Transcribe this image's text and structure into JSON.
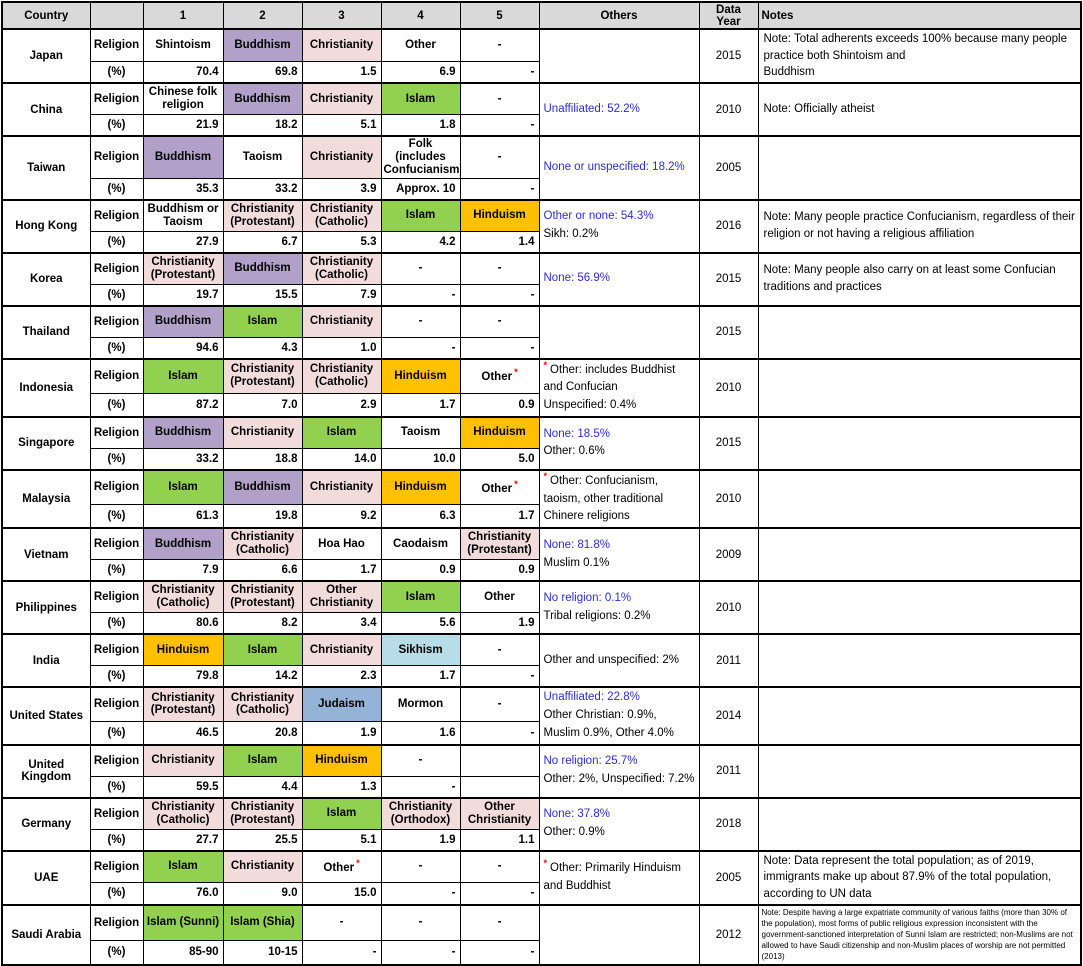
{
  "table": {
    "asterisk_char": "*",
    "headers": [
      "Country",
      "",
      "1",
      "2",
      "3",
      "4",
      "5",
      "Others",
      "Data Year",
      "Notes"
    ],
    "row_labels": {
      "religion": "Religion",
      "percent": "(%)"
    },
    "colors": {
      "purple": "#B1A0C7",
      "pink": "#F2DCDB",
      "green": "#92D050",
      "gold": "#FFC000",
      "blue": "#95B3D7",
      "lightblue": "#B7DEE8",
      "header_gray": "#D9D9D9",
      "blue_text": "#2E2EC8",
      "asterisk_red": "#FF0000",
      "none": ""
    },
    "countries": [
      {
        "name": "Japan",
        "religions": [
          {
            "text": "Shintoism",
            "color": "none"
          },
          {
            "text": "Buddhism",
            "color": "purple"
          },
          {
            "text": "Christianity",
            "color": "pink"
          },
          {
            "text": "Other",
            "color": "none"
          },
          {
            "text": "-",
            "color": "none"
          }
        ],
        "pcts": [
          "70.4",
          "69.8",
          "1.5",
          "6.9",
          "-"
        ],
        "others": [],
        "year": "2015",
        "notes": "Note: Total adherents exceeds 100% because many people practice both Shintoism and\nBuddhism",
        "notes_small": false
      },
      {
        "name": "China",
        "religions": [
          {
            "text": "Chinese folk religion",
            "color": "none"
          },
          {
            "text": "Buddhism",
            "color": "purple"
          },
          {
            "text": "Christianity",
            "color": "pink"
          },
          {
            "text": "Islam",
            "color": "green"
          },
          {
            "text": "-",
            "color": "none"
          }
        ],
        "pcts": [
          "21.9",
          "18.2",
          "5.1",
          "1.8",
          "-"
        ],
        "others": [
          {
            "text": "Unaffiliated: 52.2%",
            "style": "blue"
          }
        ],
        "year": "2010",
        "notes": "Note: Officially atheist",
        "notes_small": false
      },
      {
        "name": "Taiwan",
        "religions": [
          {
            "text": "Buddhism",
            "color": "purple"
          },
          {
            "text": "Taoism",
            "color": "none"
          },
          {
            "text": "Christianity",
            "color": "pink"
          },
          {
            "text": "Folk (includes Confucianism)",
            "color": "none"
          },
          {
            "text": "-",
            "color": "none"
          }
        ],
        "pcts": [
          "35.3",
          "33.2",
          "3.9",
          "Approx. 10",
          "-"
        ],
        "others": [
          {
            "text": "None or unspecified: 18.2%",
            "style": "blue"
          }
        ],
        "year": "2005",
        "notes": "",
        "notes_small": false
      },
      {
        "name": "Hong Kong",
        "religions": [
          {
            "text": "Buddhism or Taoism",
            "color": "none"
          },
          {
            "text": "Christianity (Protestant)",
            "color": "pink"
          },
          {
            "text": "Christianity (Catholic)",
            "color": "pink"
          },
          {
            "text": "Islam",
            "color": "green"
          },
          {
            "text": "Hinduism",
            "color": "gold"
          }
        ],
        "pcts": [
          "27.9",
          "6.7",
          "5.3",
          "4.2",
          "1.4"
        ],
        "others": [
          {
            "text": "Other or none: 54.3%",
            "style": "blue"
          },
          {
            "text": "Sikh: 0.2%",
            "style": "black"
          }
        ],
        "year": "2016",
        "notes": "Note: Many people practice Confucianism, regardless of their religion or not having a religious affiliation",
        "notes_small": false
      },
      {
        "name": "Korea",
        "religions": [
          {
            "text": "Christianity (Protestant)",
            "color": "pink"
          },
          {
            "text": "Buddhism",
            "color": "purple"
          },
          {
            "text": "Christianity (Catholic)",
            "color": "pink"
          },
          {
            "text": "-",
            "color": "none"
          },
          {
            "text": "-",
            "color": "none"
          }
        ],
        "pcts": [
          "19.7",
          "15.5",
          "7.9",
          "-",
          "-"
        ],
        "others": [
          {
            "text": "None: 56.9%",
            "style": "blue"
          }
        ],
        "year": "2015",
        "notes": "Note: Many people also carry on at least some Confucian traditions and practices",
        "notes_small": false
      },
      {
        "name": "Thailand",
        "religions": [
          {
            "text": "Buddhism",
            "color": "purple"
          },
          {
            "text": "Islam",
            "color": "green"
          },
          {
            "text": "Christianity",
            "color": "pink"
          },
          {
            "text": "-",
            "color": "none"
          },
          {
            "text": "-",
            "color": "none"
          }
        ],
        "pcts": [
          "94.6",
          "4.3",
          "1.0",
          "-",
          "-"
        ],
        "others": [],
        "year": "2015",
        "notes": "",
        "notes_small": false
      },
      {
        "name": "Indonesia",
        "religions": [
          {
            "text": "Islam",
            "color": "green"
          },
          {
            "text": "Christianity (Protestant)",
            "color": "pink"
          },
          {
            "text": "Christianity (Catholic)",
            "color": "pink"
          },
          {
            "text": "Hinduism",
            "color": "gold"
          },
          {
            "text": "Other",
            "color": "none",
            "asterisk": true
          }
        ],
        "pcts": [
          "87.2",
          "7.0",
          "2.9",
          "1.7",
          "0.9"
        ],
        "others": [
          {
            "text": "Other: includes Buddhist and Confucian",
            "style": "asterisk"
          },
          {
            "text": "Unspecified: 0.4%",
            "style": "black"
          }
        ],
        "year": "2010",
        "notes": "",
        "notes_small": false
      },
      {
        "name": "Singapore",
        "religions": [
          {
            "text": "Buddhism",
            "color": "purple"
          },
          {
            "text": "Christianity",
            "color": "pink"
          },
          {
            "text": "Islam",
            "color": "green"
          },
          {
            "text": "Taoism",
            "color": "none"
          },
          {
            "text": "Hinduism",
            "color": "gold"
          }
        ],
        "pcts": [
          "33.2",
          "18.8",
          "14.0",
          "10.0",
          "5.0"
        ],
        "others": [
          {
            "text": "None: 18.5%",
            "style": "blue"
          },
          {
            "text": "Other: 0.6%",
            "style": "black"
          }
        ],
        "year": "2015",
        "notes": "",
        "notes_small": false
      },
      {
        "name": "Malaysia",
        "religions": [
          {
            "text": "Islam",
            "color": "green"
          },
          {
            "text": "Buddhism",
            "color": "purple"
          },
          {
            "text": "Christianity",
            "color": "pink"
          },
          {
            "text": "Hinduism",
            "color": "gold"
          },
          {
            "text": "Other",
            "color": "none",
            "asterisk": true
          }
        ],
        "pcts": [
          "61.3",
          "19.8",
          "9.2",
          "6.3",
          "1.7"
        ],
        "others": [
          {
            "text": "Other: Confucianism, taoism, other traditional Chinere religions",
            "style": "asterisk"
          }
        ],
        "year": "2010",
        "notes": "",
        "notes_small": false
      },
      {
        "name": "Vietnam",
        "religions": [
          {
            "text": "Buddhism",
            "color": "purple"
          },
          {
            "text": "Christianity (Catholic)",
            "color": "pink"
          },
          {
            "text": "Hoa Hao",
            "color": "none"
          },
          {
            "text": "Caodaism",
            "color": "none"
          },
          {
            "text": "Christianity (Protestant)",
            "color": "pink"
          }
        ],
        "pcts": [
          "7.9",
          "6.6",
          "1.7",
          "0.9",
          "0.9"
        ],
        "others": [
          {
            "text": "None: 81.8%",
            "style": "blue"
          },
          {
            "text": "Muslim 0.1%",
            "style": "black"
          }
        ],
        "year": "2009",
        "notes": "",
        "notes_small": false
      },
      {
        "name": "Philippines",
        "religions": [
          {
            "text": "Christianity (Catholic)",
            "color": "pink"
          },
          {
            "text": "Christianity (Protestant)",
            "color": "pink"
          },
          {
            "text": "Other Christianity",
            "color": "pink"
          },
          {
            "text": "Islam",
            "color": "green"
          },
          {
            "text": "Other",
            "color": "none"
          }
        ],
        "pcts": [
          "80.6",
          "8.2",
          "3.4",
          "5.6",
          "1.9"
        ],
        "others": [
          {
            "text": "No religion: 0.1%",
            "style": "blue"
          },
          {
            "text": "Tribal religions: 0.2%",
            "style": "black"
          }
        ],
        "year": "2010",
        "notes": "",
        "notes_small": false
      },
      {
        "name": "India",
        "religions": [
          {
            "text": "Hinduism",
            "color": "gold"
          },
          {
            "text": "Islam",
            "color": "green"
          },
          {
            "text": "Christianity",
            "color": "pink"
          },
          {
            "text": "Sikhism",
            "color": "lightblue"
          },
          {
            "text": "-",
            "color": "none"
          }
        ],
        "pcts": [
          "79.8",
          "14.2",
          "2.3",
          "1.7",
          "-"
        ],
        "others": [
          {
            "text": "Other and unspecified: 2%",
            "style": "black"
          }
        ],
        "year": "2011",
        "notes": "",
        "notes_small": false
      },
      {
        "name": "United States",
        "religions": [
          {
            "text": "Christianity (Protestant)",
            "color": "pink"
          },
          {
            "text": "Christianity (Catholic)",
            "color": "pink"
          },
          {
            "text": "Judaism",
            "color": "blue"
          },
          {
            "text": "Mormon",
            "color": "none"
          },
          {
            "text": "-",
            "color": "none"
          }
        ],
        "pcts": [
          "46.5",
          "20.8",
          "1.9",
          "1.6",
          "-"
        ],
        "others": [
          {
            "text": "Unaffiliated: 22.8%",
            "style": "blue"
          },
          {
            "text": "Other Christian: 0.9%, Muslim 0.9%, Other 4.0%",
            "style": "black"
          }
        ],
        "year": "2014",
        "notes": "",
        "notes_small": false
      },
      {
        "name": "United Kingdom",
        "religions": [
          {
            "text": "Christianity",
            "color": "pink"
          },
          {
            "text": "Islam",
            "color": "green"
          },
          {
            "text": "Hinduism",
            "color": "gold"
          },
          {
            "text": "-",
            "color": "none"
          },
          {
            "text": "",
            "color": "none"
          }
        ],
        "pcts": [
          "59.5",
          "4.4",
          "1.3",
          "-",
          ""
        ],
        "others": [
          {
            "text": "No religion: 25.7%",
            "style": "blue"
          },
          {
            "text": "Other: 2%, Unspecified: 7.2%",
            "style": "black"
          }
        ],
        "year": "2011",
        "notes": "",
        "notes_small": false
      },
      {
        "name": "Germany",
        "religions": [
          {
            "text": "Christianity (Catholic)",
            "color": "pink"
          },
          {
            "text": "Christianity (Protestant)",
            "color": "pink"
          },
          {
            "text": "Islam",
            "color": "green"
          },
          {
            "text": "Christianity (Orthodox)",
            "color": "pink"
          },
          {
            "text": "Other Christianity",
            "color": "pink"
          }
        ],
        "pcts": [
          "27.7",
          "25.5",
          "5.1",
          "1.9",
          "1.1"
        ],
        "others": [
          {
            "text": "None: 37.8%",
            "style": "blue"
          },
          {
            "text": "Other: 0.9%",
            "style": "black"
          }
        ],
        "year": "2018",
        "notes": "",
        "notes_small": false
      },
      {
        "name": "UAE",
        "religions": [
          {
            "text": "Islam",
            "color": "green"
          },
          {
            "text": "Christianity",
            "color": "pink"
          },
          {
            "text": "Other",
            "color": "none",
            "asterisk": true
          },
          {
            "text": "-",
            "color": "none"
          },
          {
            "text": "-",
            "color": "none"
          }
        ],
        "pcts": [
          "76.0",
          "9.0",
          "15.0",
          "-",
          "-"
        ],
        "others": [
          {
            "text": "Other: Primarily Hinduism and Buddhist",
            "style": "asterisk"
          }
        ],
        "year": "2005",
        "notes": "Note: Data represent the total population; as of 2019, immigrants make up about 87.9% of the total population, according to UN data",
        "notes_small": false
      },
      {
        "name": "Saudi Arabia",
        "religions": [
          {
            "text": "Islam (Sunni)",
            "color": "green"
          },
          {
            "text": "Islam (Shia)",
            "color": "green"
          },
          {
            "text": "-",
            "color": "none"
          },
          {
            "text": "-",
            "color": "none"
          },
          {
            "text": "-",
            "color": "none"
          }
        ],
        "pcts": [
          "85-90",
          "10-15",
          "-",
          "-",
          "-"
        ],
        "others": [],
        "year": "2012",
        "notes": "Note: Despite having a large expatriate community of various faiths (more than 30% of the population), most forms of public religious expression inconsistent with the government-sanctioned interpretation of Sunni Islam are restricted; non-Muslims are not allowed to have Saudi citizenship and non-Muslim places of worship are not permitted (2013)",
        "notes_small": true
      }
    ]
  }
}
